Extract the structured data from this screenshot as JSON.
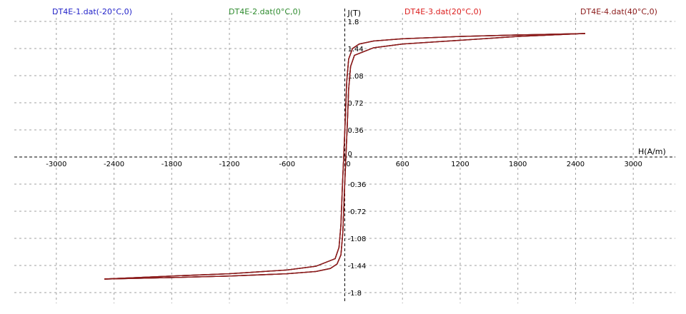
{
  "chart_data": {
    "type": "line",
    "title": "",
    "xlabel": "H(A/m)",
    "ylabel": "J(T)",
    "xlim": [
      -3400,
      3400
    ],
    "ylim": [
      -1.8,
      1.8
    ],
    "x_ticks": [
      -3000,
      -2400,
      -1800,
      -1200,
      -600,
      0,
      600,
      1200,
      1800,
      2400,
      3000
    ],
    "x_tick_labels": [
      "-3000",
      "-2400",
      "-1800",
      "-1200",
      "-600",
      "0",
      "600",
      "1200",
      "1800",
      "2400",
      "3000"
    ],
    "y_ticks": [
      1.8,
      1.44,
      1.08,
      0.72,
      0.36,
      0,
      -0.36,
      -0.72,
      -1.08,
      -1.44,
      -1.8
    ],
    "y_tick_labels": [
      "1.8",
      "1.44",
      "1.08",
      "0.72",
      "0.36",
      "0",
      "-0.36",
      "-0.72",
      "-1.08",
      "-1.44",
      "-1.8"
    ],
    "grid": true,
    "legend_position": "top",
    "series": [
      {
        "name": "DT4E-1.dat(-20°C,0)",
        "color": "#1f1fc8",
        "upper": {
          "x": [
            2500,
            1800,
            1200,
            600,
            300,
            150,
            80,
            40,
            20,
            5,
            -10,
            -25,
            -40,
            -60,
            -100,
            -300,
            -600,
            -1200,
            -1800,
            -2500
          ],
          "y": [
            1.64,
            1.62,
            1.6,
            1.57,
            1.54,
            1.5,
            1.44,
            1.3,
            1.0,
            0.5,
            0.05,
            -0.4,
            -0.9,
            -1.2,
            -1.35,
            -1.45,
            -1.5,
            -1.55,
            -1.58,
            -1.62
          ]
        },
        "lower": {
          "x": [
            -2500,
            -1800,
            -1200,
            -600,
            -300,
            -150,
            -80,
            -40,
            -20,
            -5,
            10,
            25,
            40,
            60,
            100,
            300,
            600,
            1200,
            1800,
            2500
          ],
          "y": [
            -1.62,
            -1.6,
            -1.58,
            -1.55,
            -1.52,
            -1.48,
            -1.42,
            -1.3,
            -1.0,
            -0.5,
            -0.05,
            0.4,
            0.9,
            1.2,
            1.35,
            1.45,
            1.5,
            1.55,
            1.6,
            1.64
          ]
        }
      },
      {
        "name": "DT4E-2.dat(0°C,0)",
        "color": "#2e8b2e",
        "upper": {
          "x": [
            2500,
            1800,
            1200,
            600,
            300,
            150,
            80,
            40,
            20,
            5,
            -10,
            -25,
            -40,
            -60,
            -100,
            -300,
            -600,
            -1200,
            -1800,
            -2500
          ],
          "y": [
            1.64,
            1.62,
            1.6,
            1.57,
            1.54,
            1.5,
            1.44,
            1.3,
            1.0,
            0.5,
            0.05,
            -0.4,
            -0.9,
            -1.2,
            -1.35,
            -1.45,
            -1.5,
            -1.55,
            -1.58,
            -1.62
          ]
        },
        "lower": {
          "x": [
            -2500,
            -1800,
            -1200,
            -600,
            -300,
            -150,
            -80,
            -40,
            -20,
            -5,
            10,
            25,
            40,
            60,
            100,
            300,
            600,
            1200,
            1800,
            2500
          ],
          "y": [
            -1.62,
            -1.6,
            -1.58,
            -1.55,
            -1.52,
            -1.48,
            -1.42,
            -1.3,
            -1.0,
            -0.5,
            -0.05,
            0.4,
            0.9,
            1.2,
            1.35,
            1.45,
            1.5,
            1.55,
            1.6,
            1.64
          ]
        }
      },
      {
        "name": "DT4E-3.dat(20°C,0)",
        "color": "#dc1e1e",
        "upper": {
          "x": [
            2500,
            1800,
            1200,
            600,
            300,
            150,
            80,
            40,
            20,
            5,
            -10,
            -25,
            -40,
            -60,
            -100,
            -300,
            -600,
            -1200,
            -1800,
            -2500
          ],
          "y": [
            1.64,
            1.62,
            1.6,
            1.57,
            1.54,
            1.5,
            1.44,
            1.3,
            1.0,
            0.5,
            0.05,
            -0.4,
            -0.9,
            -1.2,
            -1.35,
            -1.45,
            -1.5,
            -1.55,
            -1.58,
            -1.62
          ]
        },
        "lower": {
          "x": [
            -2500,
            -1800,
            -1200,
            -600,
            -300,
            -150,
            -80,
            -40,
            -20,
            -5,
            10,
            25,
            40,
            60,
            100,
            300,
            600,
            1200,
            1800,
            2500
          ],
          "y": [
            -1.62,
            -1.6,
            -1.58,
            -1.55,
            -1.52,
            -1.48,
            -1.42,
            -1.3,
            -1.0,
            -0.5,
            -0.05,
            0.4,
            0.9,
            1.2,
            1.35,
            1.45,
            1.5,
            1.55,
            1.6,
            1.64
          ]
        }
      },
      {
        "name": "DT4E-4.dat(40°C,0)",
        "color": "#8b1a1a",
        "upper": {
          "x": [
            2500,
            1800,
            1200,
            600,
            300,
            150,
            80,
            40,
            20,
            5,
            -10,
            -25,
            -40,
            -60,
            -100,
            -300,
            -600,
            -1200,
            -1800,
            -2500
          ],
          "y": [
            1.64,
            1.62,
            1.6,
            1.57,
            1.54,
            1.5,
            1.44,
            1.3,
            1.0,
            0.5,
            0.05,
            -0.4,
            -0.9,
            -1.2,
            -1.35,
            -1.45,
            -1.5,
            -1.55,
            -1.58,
            -1.62
          ]
        },
        "lower": {
          "x": [
            -2500,
            -1800,
            -1200,
            -600,
            -300,
            -150,
            -80,
            -40,
            -20,
            -5,
            10,
            25,
            40,
            60,
            100,
            300,
            600,
            1200,
            1800,
            2500
          ],
          "y": [
            -1.62,
            -1.6,
            -1.58,
            -1.55,
            -1.52,
            -1.48,
            -1.42,
            -1.3,
            -1.0,
            -0.5,
            -0.05,
            0.4,
            0.9,
            1.2,
            1.35,
            1.45,
            1.5,
            1.55,
            1.6,
            1.64
          ]
        }
      }
    ]
  }
}
